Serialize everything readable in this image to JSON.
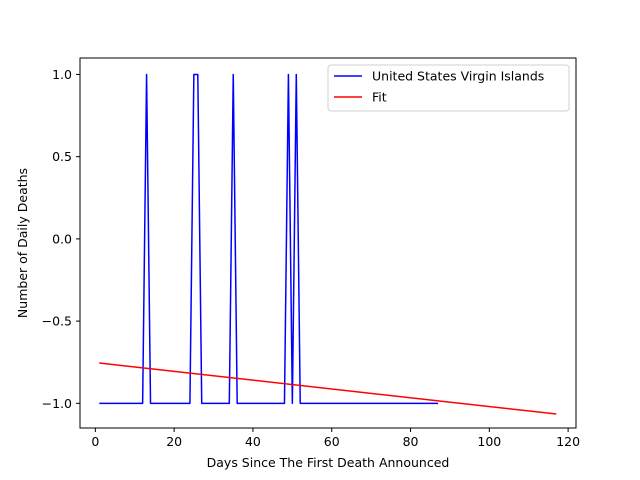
{
  "chart_data": {
    "type": "line",
    "title": "",
    "xlabel": "Days Since The First Death Announced",
    "ylabel": "Number of Daily Deaths",
    "xlim": [
      -3.9,
      122
    ],
    "ylim": [
      -1.15,
      1.1
    ],
    "xticks": [
      0,
      20,
      40,
      60,
      80,
      100,
      120
    ],
    "yticks": [
      -1.0,
      -0.5,
      0.0,
      0.5,
      1.0
    ],
    "ytick_labels": [
      "−1.0",
      "−0.5",
      "0.0",
      "0.5",
      "1.0"
    ],
    "grid": false,
    "legend_position": "top-right",
    "series": [
      {
        "name": "United States Virgin Islands",
        "color": "#0000ff",
        "x": [
          1,
          12,
          13,
          14,
          24,
          25,
          26,
          27,
          34,
          35,
          36,
          48,
          49,
          50,
          51,
          52,
          87
        ],
        "y": [
          -1,
          -1,
          1,
          -1,
          -1,
          1,
          1,
          -1,
          -1,
          1,
          -1,
          -1,
          1,
          -1,
          1,
          -1,
          -1
        ]
      },
      {
        "name": "Fit",
        "color": "#ff0000",
        "x": [
          1,
          117
        ],
        "y": [
          -0.755,
          -1.065
        ]
      }
    ]
  }
}
